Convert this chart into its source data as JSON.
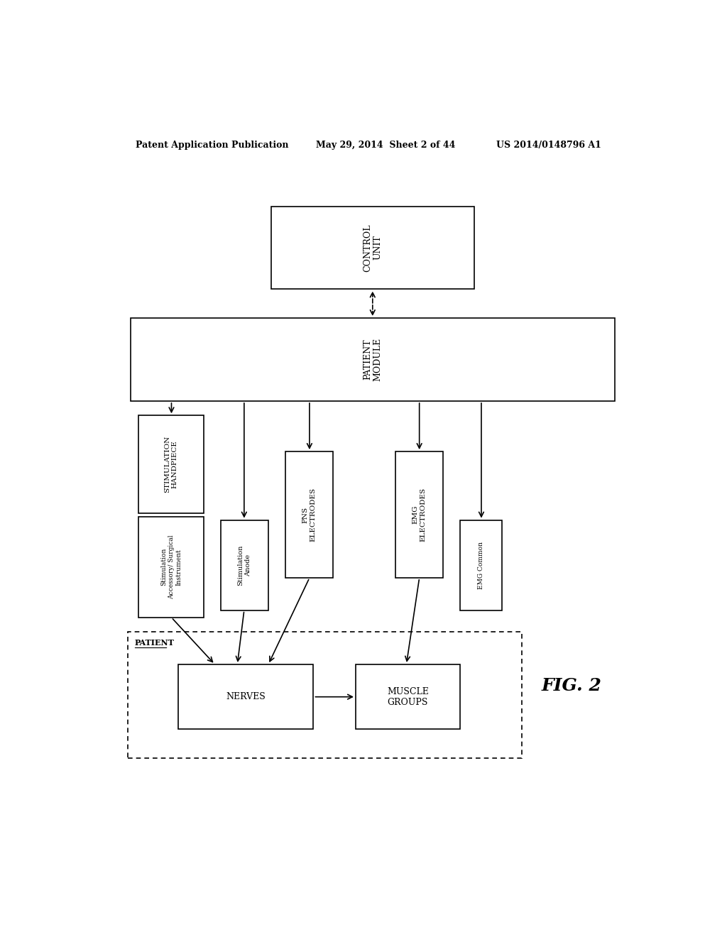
{
  "bg_color": "#ffffff",
  "header_left": "Patent Application Publication",
  "header_mid": "May 29, 2014  Sheet 2 of 44",
  "header_right": "US 2014/0148796 A1",
  "fig_label": "FIG. 2"
}
